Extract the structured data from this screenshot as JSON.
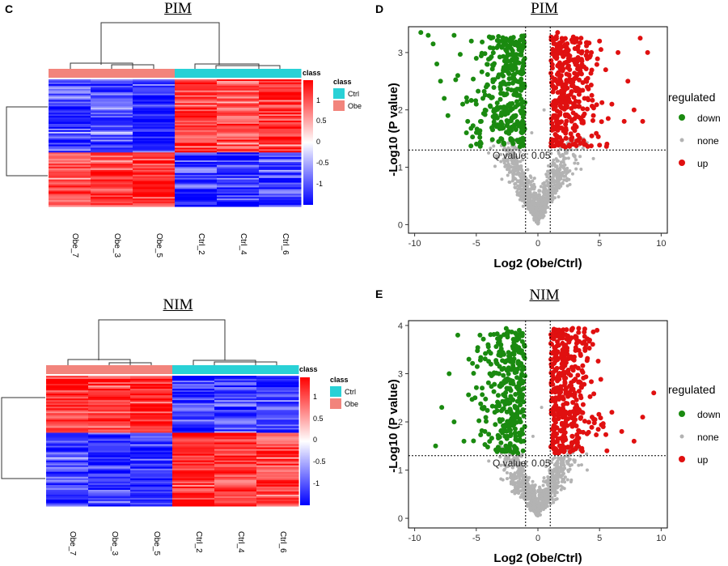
{
  "panels": {
    "c": {
      "letter": "C",
      "title": "PIM"
    },
    "d": {
      "letter": "D",
      "title": "PIM"
    },
    "e": {
      "letter": "E",
      "title": "NIM"
    },
    "nim_heat": {
      "title": "NIM"
    }
  },
  "heatmap_legend": {
    "annotation_title": "class",
    "class_title": "class",
    "classes": [
      {
        "label": "Ctrl",
        "color": "#29d1d6"
      },
      {
        "label": "Obe",
        "color": "#f2847c"
      }
    ],
    "scale_ticks": [
      "1",
      "0.5",
      "0",
      "-0.5",
      "-1"
    ],
    "high_color": "#ff0000",
    "mid_color": "#ffffff",
    "low_color": "#0000ff"
  },
  "volcano_legend": {
    "title": "regulated",
    "items": [
      {
        "label": "down",
        "color": "#1a8a10"
      },
      {
        "label": "none",
        "color": "#b3b3b3"
      },
      {
        "label": "up",
        "color": "#e01010"
      }
    ]
  },
  "chart_data": [
    {
      "type": "heatmap",
      "title": "PIM",
      "columns": [
        "Obe_7",
        "Obe_3",
        "Obe_5",
        "Ctrl_2",
        "Ctrl_4",
        "Ctrl_6"
      ],
      "column_class": [
        "Obe",
        "Obe",
        "Obe",
        "Ctrl",
        "Ctrl",
        "Ctrl"
      ],
      "row_clusters": [
        {
          "fraction": 0.58,
          "values": [
            -0.9,
            -0.85,
            -1.0,
            0.9,
            0.85,
            0.95
          ]
        },
        {
          "fraction": 0.42,
          "values": [
            0.9,
            0.85,
            0.95,
            -1.0,
            -0.95,
            -0.9
          ]
        }
      ],
      "color_range": [
        -1.2,
        1.2
      ]
    },
    {
      "type": "heatmap",
      "title": "NIM",
      "columns": [
        "Obe_7",
        "Obe_3",
        "Obe_5",
        "Ctrl_2",
        "Ctrl_4",
        "Ctrl_6"
      ],
      "column_class": [
        "Obe",
        "Obe",
        "Obe",
        "Ctrl",
        "Ctrl",
        "Ctrl"
      ],
      "row_clusters": [
        {
          "fraction": 0.44,
          "values": [
            0.95,
            0.9,
            1.0,
            -0.9,
            -0.85,
            -0.9
          ]
        },
        {
          "fraction": 0.56,
          "values": [
            -0.85,
            -0.9,
            -0.95,
            1.0,
            0.9,
            0.85
          ]
        }
      ],
      "color_range": [
        -1.2,
        1.2
      ]
    },
    {
      "type": "scatter",
      "title": "PIM",
      "xlabel": "Log2 (Obe/Ctrl)",
      "ylabel": "-Log10 (P value)",
      "xlim": [
        -10.5,
        10.5
      ],
      "ylim": [
        -0.15,
        3.45
      ],
      "xticks": [
        -10,
        -5,
        0,
        5,
        10
      ],
      "yticks": [
        0,
        1,
        2,
        3
      ],
      "hline": 1.3,
      "vlines": [
        -1,
        1
      ],
      "annotation": "Q value: 0.05",
      "series": [
        {
          "name": "down",
          "points": [
            [
              -9.5,
              3.35
            ],
            [
              -8.9,
              3.3
            ],
            [
              -8.5,
              3.15
            ],
            [
              -8.2,
              2.8
            ],
            [
              -7.9,
              2.5
            ],
            [
              -7.6,
              2.2
            ],
            [
              -7.3,
              1.9
            ],
            [
              -6.8,
              3.3
            ],
            [
              -6.5,
              2.6
            ],
            [
              -6.1,
              2.1
            ],
            [
              -5.8,
              1.6
            ],
            [
              -5.4,
              3.2
            ],
            [
              -5.0,
              2.9
            ],
            [
              -4.6,
              1.8
            ],
            [
              -4.2,
              2.4
            ],
            [
              -3.8,
              3.25
            ],
            [
              -3.4,
              2.0
            ],
            [
              -3.0,
              1.5
            ],
            [
              -2.6,
              2.7
            ],
            [
              -2.2,
              3.25
            ],
            [
              -1.8,
              1.9
            ],
            [
              -1.4,
              2.5
            ],
            [
              -1.2,
              1.4
            ]
          ]
        },
        {
          "name": "none",
          "points": [
            [
              -3.0,
              1.1
            ],
            [
              -2.0,
              0.8
            ],
            [
              -1.0,
              0.5
            ],
            [
              0.0,
              0.05
            ],
            [
              1.0,
              0.4
            ],
            [
              2.0,
              0.9
            ],
            [
              3.0,
              1.2
            ],
            [
              -0.5,
              1.6
            ],
            [
              0.5,
              2.0
            ],
            [
              0.2,
              0.2
            ],
            [
              -4.0,
              1.25
            ],
            [
              4.5,
              1.15
            ]
          ]
        },
        {
          "name": "up",
          "points": [
            [
              1.2,
              1.45
            ],
            [
              1.6,
              3.35
            ],
            [
              2.0,
              2.2
            ],
            [
              2.5,
              2.9
            ],
            [
              3.0,
              1.7
            ],
            [
              3.5,
              3.25
            ],
            [
              4.0,
              2.4
            ],
            [
              4.5,
              1.9
            ],
            [
              5.0,
              3.2
            ],
            [
              5.5,
              2.7
            ],
            [
              6.0,
              2.1
            ],
            [
              6.5,
              3.0
            ],
            [
              7.0,
              1.8
            ],
            [
              7.3,
              2.5
            ],
            [
              7.8,
              2.0
            ],
            [
              8.3,
              3.25
            ],
            [
              8.9,
              3.0
            ],
            [
              8.5,
              1.8
            ]
          ]
        }
      ]
    },
    {
      "type": "scatter",
      "title": "NIM",
      "xlabel": "Log2 (Obe/Ctrl)",
      "ylabel": "-Log10 (P value)",
      "xlim": [
        -10.5,
        10.5
      ],
      "ylim": [
        -0.2,
        4.1
      ],
      "xticks": [
        -10,
        -5,
        0,
        5,
        10
      ],
      "yticks": [
        0,
        1,
        2,
        3,
        4
      ],
      "hline": 1.3,
      "vlines": [
        -1,
        1
      ],
      "annotation": "Q value: 0.05",
      "series": [
        {
          "name": "down",
          "points": [
            [
              -8.3,
              1.5
            ],
            [
              -7.8,
              2.3
            ],
            [
              -7.2,
              3.0
            ],
            [
              -6.8,
              2.0
            ],
            [
              -6.5,
              3.8
            ],
            [
              -6.0,
              1.6
            ],
            [
              -5.6,
              3.3
            ],
            [
              -5.1,
              2.5
            ],
            [
              -4.7,
              3.8
            ],
            [
              -4.3,
              1.8
            ],
            [
              -3.9,
              3.0
            ],
            [
              -3.5,
              2.2
            ],
            [
              -3.0,
              3.6
            ],
            [
              -2.6,
              1.5
            ],
            [
              -2.2,
              2.8
            ],
            [
              -1.8,
              3.5
            ],
            [
              -1.4,
              2.0
            ],
            [
              -1.2,
              1.4
            ]
          ]
        },
        {
          "name": "none",
          "points": [
            [
              -3.0,
              1.1
            ],
            [
              -2.0,
              0.7
            ],
            [
              -1.0,
              0.4
            ],
            [
              0.0,
              0.05
            ],
            [
              1.0,
              0.5
            ],
            [
              2.0,
              0.8
            ],
            [
              3.0,
              1.2
            ],
            [
              0.3,
              2.3
            ],
            [
              -0.4,
              1.7
            ],
            [
              4.0,
              1.0
            ]
          ]
        },
        {
          "name": "up",
          "points": [
            [
              1.2,
              1.5
            ],
            [
              1.6,
              3.3
            ],
            [
              2.0,
              2.1
            ],
            [
              2.5,
              3.0
            ],
            [
              3.0,
              1.6
            ],
            [
              3.5,
              2.5
            ],
            [
              3.9,
              3.6
            ],
            [
              4.4,
              2.1
            ],
            [
              4.8,
              3.9
            ],
            [
              5.3,
              1.9
            ],
            [
              6.0,
              2.2
            ],
            [
              6.8,
              1.8
            ],
            [
              7.8,
              1.6
            ],
            [
              8.5,
              2.1
            ],
            [
              9.4,
              2.6
            ],
            [
              5.6,
              1.4
            ]
          ]
        }
      ]
    }
  ]
}
